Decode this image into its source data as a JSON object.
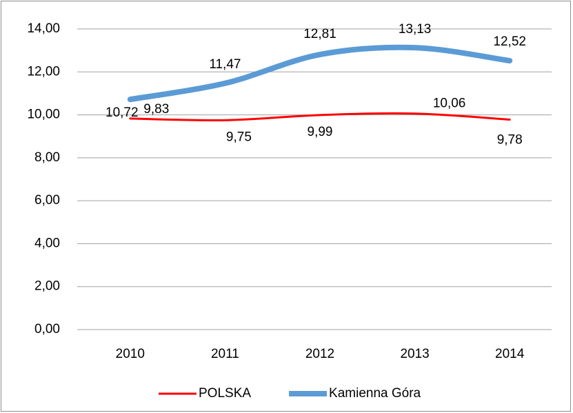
{
  "chart_data": {
    "type": "line",
    "categories": [
      "2010",
      "2011",
      "2012",
      "2013",
      "2014"
    ],
    "series": [
      {
        "name": "POLSKA",
        "color": "#ff0000",
        "values": [
          9.83,
          9.75,
          9.99,
          10.06,
          9.78
        ],
        "value_labels": [
          "9,83",
          "9,75",
          "9,99",
          "10,06",
          "9,78"
        ]
      },
      {
        "name": "Kamienna Góra",
        "color": "#5b9bd5",
        "values": [
          10.72,
          11.47,
          12.81,
          13.13,
          12.52
        ],
        "value_labels": [
          "10,72",
          "11,47",
          "12,81",
          "13,13",
          "12,52"
        ]
      }
    ],
    "ylim": [
      0,
      14
    ],
    "yticks": [
      {
        "value": 0,
        "label": "0,00"
      },
      {
        "value": 2,
        "label": "2,00"
      },
      {
        "value": 4,
        "label": "4,00"
      },
      {
        "value": 6,
        "label": "6,00"
      },
      {
        "value": 8,
        "label": "8,00"
      },
      {
        "value": 10,
        "label": "10,00"
      },
      {
        "value": 12,
        "label": "12,00"
      },
      {
        "value": 14,
        "label": "14,00"
      }
    ],
    "grid": true,
    "smooth": true,
    "legend": "bottom"
  }
}
